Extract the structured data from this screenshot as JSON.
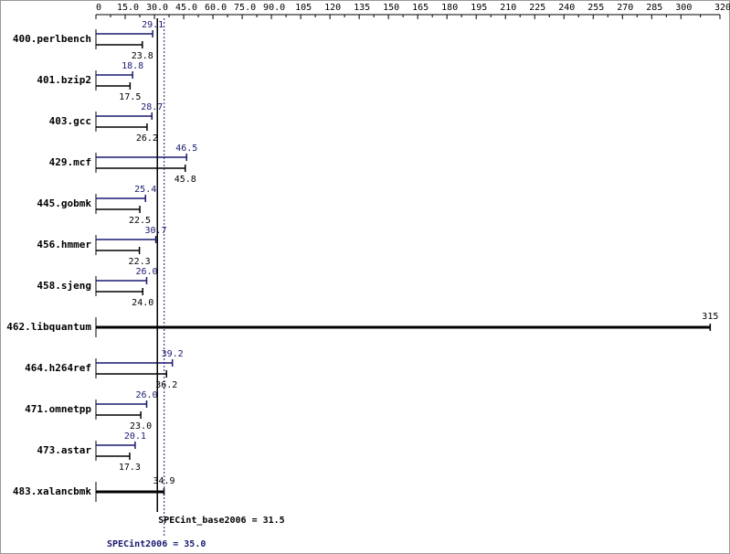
{
  "chart_data": {
    "type": "hbar",
    "categories": [
      "400.perlbench",
      "401.bzip2",
      "403.gcc",
      "429.mcf",
      "445.gobmk",
      "456.hmmer",
      "458.sjeng",
      "462.libquantum",
      "464.h264ref",
      "471.omnetpp",
      "473.astar",
      "483.xalancbmk"
    ],
    "series": [
      {
        "color": "#191970",
        "values": [
          29.1,
          18.8,
          28.7,
          46.5,
          25.4,
          30.7,
          26,
          null,
          39.2,
          26,
          20.1,
          null
        ],
        "value_labels": [
          "29.1",
          "18.8",
          "28.7",
          "46.5",
          "25.4",
          "30.7",
          "26.0",
          null,
          "39.2",
          "26.0",
          "20.1",
          null
        ]
      },
      {
        "color": "#000000",
        "values": [
          23.8,
          17.5,
          26.2,
          45.8,
          22.5,
          22.3,
          24,
          315,
          36.2,
          23,
          17.3,
          34.9
        ],
        "value_labels": [
          "23.8",
          "17.5",
          "26.2",
          "45.8",
          "22.5",
          "22.3",
          "24.0",
          "315",
          "36.2",
          "23.0",
          "17.3",
          "34.9"
        ]
      }
    ],
    "xlim": [
      0,
      320
    ],
    "xticks": [
      0,
      {
        "value": 15,
        "label": "15.0"
      },
      {
        "value": 30,
        "label": "30.0"
      },
      {
        "value": 45,
        "label": "45.0"
      },
      {
        "value": 60,
        "label": "60.0"
      },
      {
        "value": 75,
        "label": "75.0"
      },
      {
        "value": 90,
        "label": "90.0"
      },
      105,
      120,
      135,
      150,
      165,
      180,
      195,
      210,
      225,
      240,
      255,
      270,
      285,
      300,
      320
    ],
    "reference_lines": [
      {
        "label": "SPECint_base2006 = 31.5",
        "value": 31.5,
        "color": "#000000",
        "style": "solid"
      },
      {
        "label": "SPECint2006 = 35.0",
        "value": 35,
        "color": "#191970",
        "style": "dotted"
      }
    ]
  }
}
